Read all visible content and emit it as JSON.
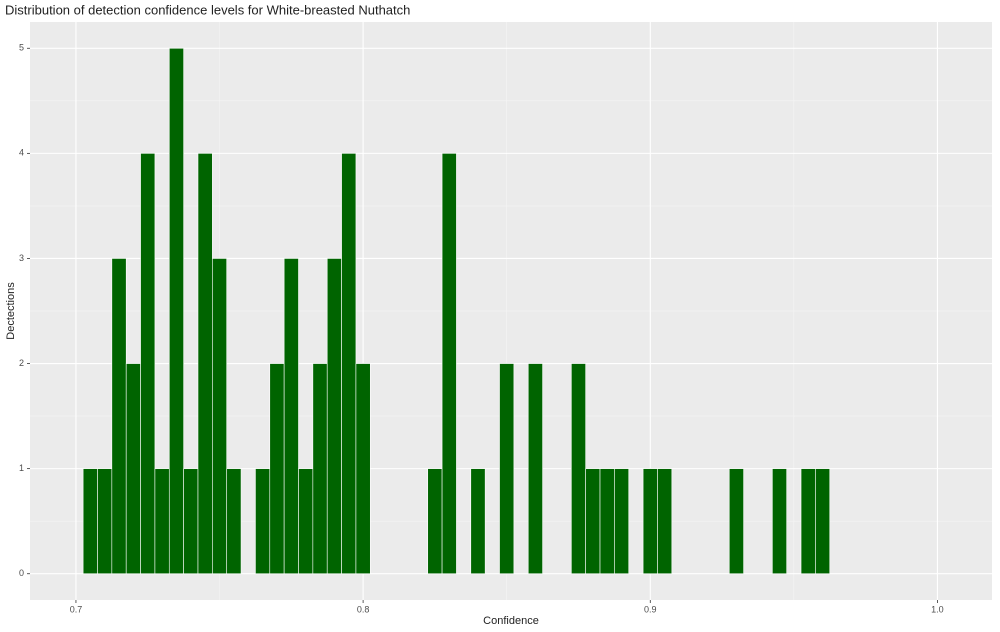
{
  "chart_data": {
    "type": "histogram",
    "title": "Distribution of detection confidence levels for White-breasted Nuthatch",
    "x_label": "Confidence",
    "y_label": "Dectections",
    "bins": [
      0.7025,
      0.7075,
      0.7125,
      0.7175,
      0.7225,
      0.7275,
      0.7325,
      0.7375,
      0.7425,
      0.7475,
      0.7525,
      0.7575,
      0.7625,
      0.7675,
      0.7725,
      0.7775,
      0.7825,
      0.7875,
      0.7925,
      0.7975,
      0.8025,
      0.8075,
      0.8125,
      0.8175,
      0.8225,
      0.8275,
      0.8325,
      0.8375,
      0.8425,
      0.8475,
      0.8525,
      0.8575,
      0.8625,
      0.8675,
      0.8725,
      0.8775,
      0.8825,
      0.8875,
      0.8925,
      0.8975,
      0.9025,
      0.9075,
      0.9125,
      0.9175,
      0.9225,
      0.9275,
      0.9325,
      0.9375,
      0.9425,
      0.9475,
      0.9525,
      0.9575,
      0.9625
    ],
    "values": [
      1,
      1,
      3,
      2,
      4,
      1,
      5,
      1,
      4,
      3,
      1,
      0,
      1,
      2,
      3,
      1,
      2,
      3,
      4,
      2,
      0,
      0,
      0,
      0,
      1,
      4,
      0,
      1,
      0,
      2,
      0,
      2,
      0,
      0,
      2,
      1,
      1,
      1,
      0,
      1,
      1,
      0,
      0,
      0,
      0,
      1,
      0,
      0,
      1,
      0,
      1,
      1
    ],
    "color": "#006400",
    "xlim": [
      0.684,
      1.019
    ],
    "xticks": [
      0.7,
      0.8,
      0.9,
      {
        "value": 1,
        "label": "1.0"
      }
    ],
    "ylim": [
      -0.25,
      5.25
    ],
    "yticks": [
      0,
      1,
      2,
      3,
      4,
      5
    ],
    "grid": true
  }
}
